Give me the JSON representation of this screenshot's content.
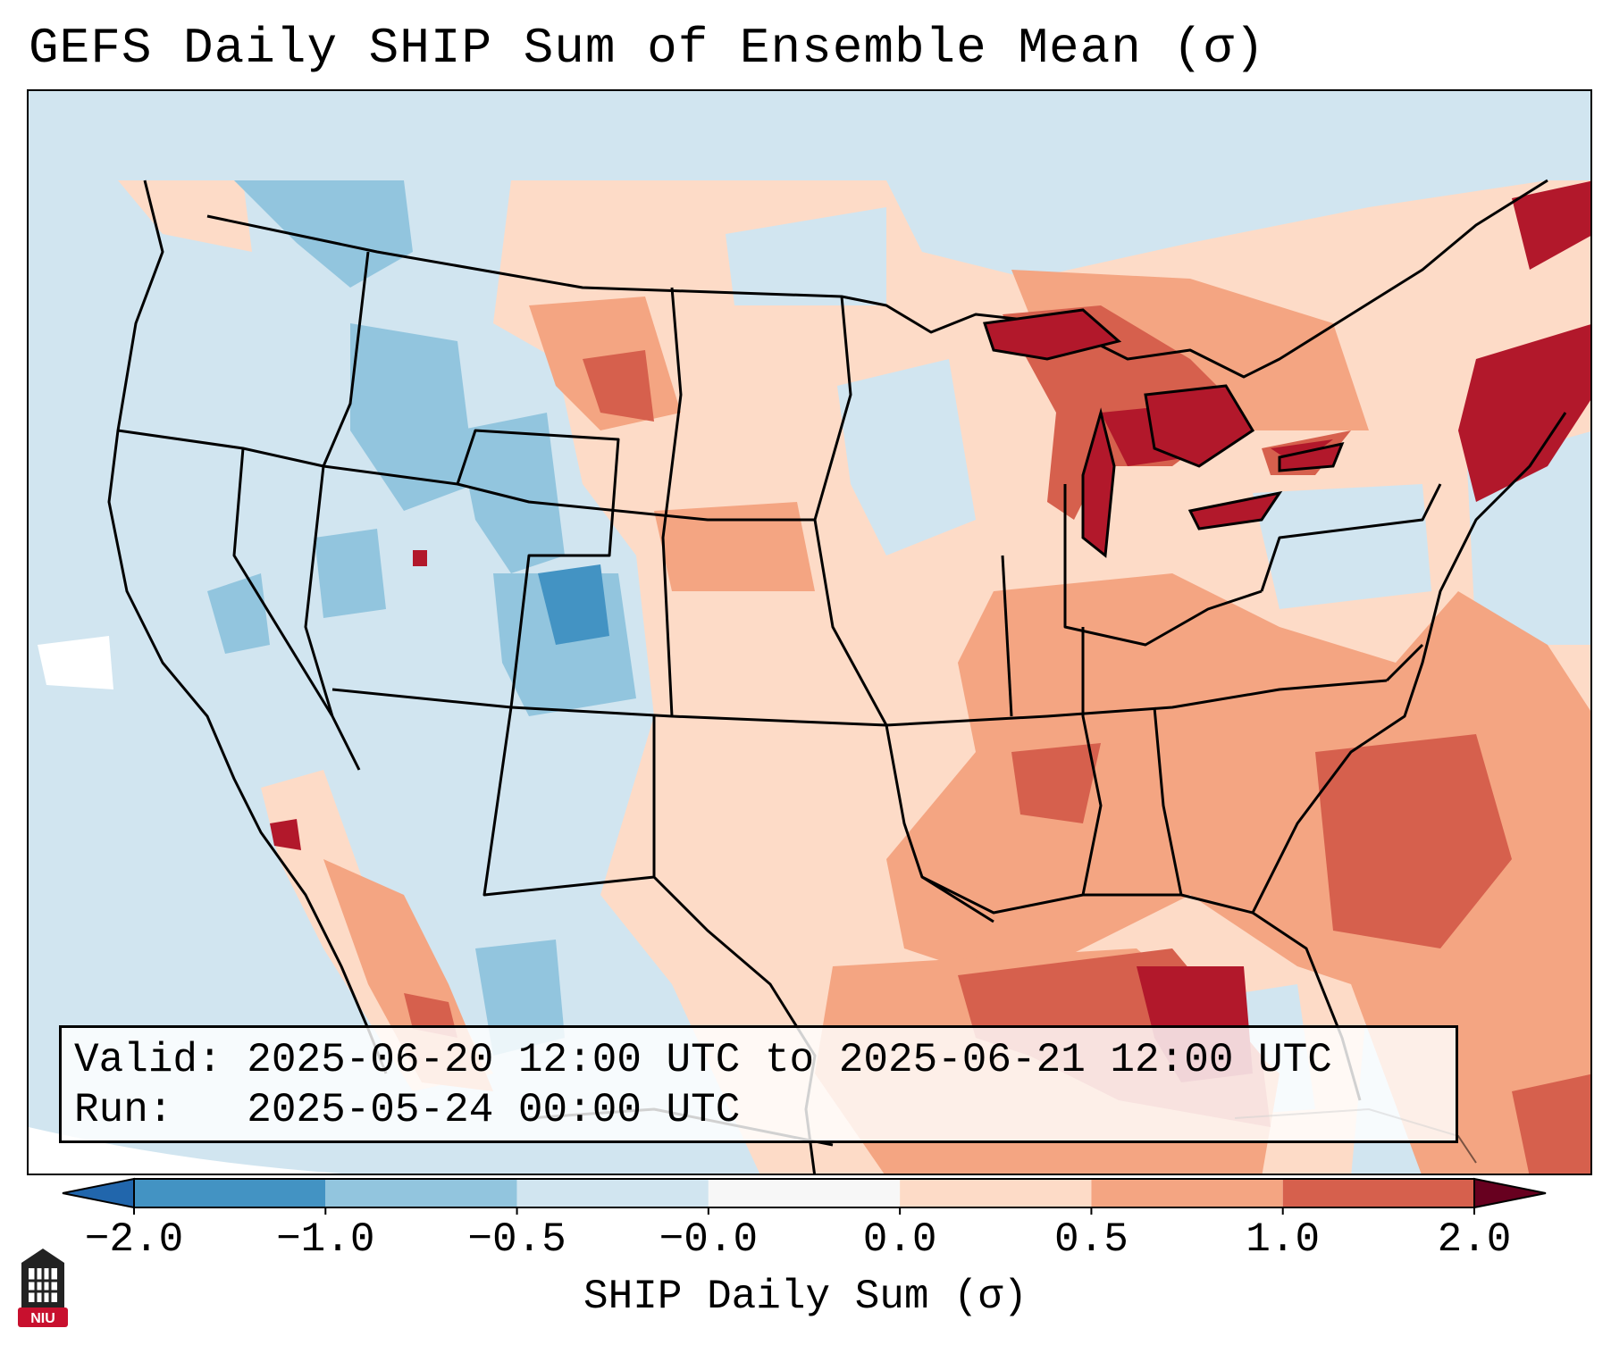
{
  "title": "GEFS Daily SHIP Sum of Ensemble Mean (σ)",
  "info": {
    "valid_label": "Valid:",
    "valid_value": "2025-06-20 12:00 UTC to 2025-06-21 12:00 UTC",
    "run_label": "Run:",
    "run_value": "2025-05-24 00:00 UTC"
  },
  "colorbar": {
    "label": "SHIP Daily Sum (σ)",
    "ticks": [
      "−2.0",
      "−1.0",
      "−0.5",
      "−0.0",
      "0.0",
      "0.5",
      "1.0",
      "2.0"
    ],
    "colors": [
      "#4393c3",
      "#92c5de",
      "#d1e5f0",
      "#f7f7f7",
      "#fddbc7",
      "#f4a582",
      "#d6604d",
      "#b2182b"
    ],
    "extend": "both"
  },
  "logo": {
    "text": "NIU",
    "color": "#c8102e"
  },
  "regions": [
    {
      "name": "southeast-gulf-anomaly",
      "level": 1.0
    },
    {
      "name": "central-gulf-max",
      "level": 2.0
    },
    {
      "name": "great-lakes-anomaly",
      "level": 1.0
    },
    {
      "name": "new-england-max",
      "level": 2.0
    },
    {
      "name": "atlantic-coast-anomaly",
      "level": 1.0
    },
    {
      "name": "mountain-west-negative",
      "level": -1.0
    },
    {
      "name": "colorado-min",
      "level": -2.0
    }
  ]
}
